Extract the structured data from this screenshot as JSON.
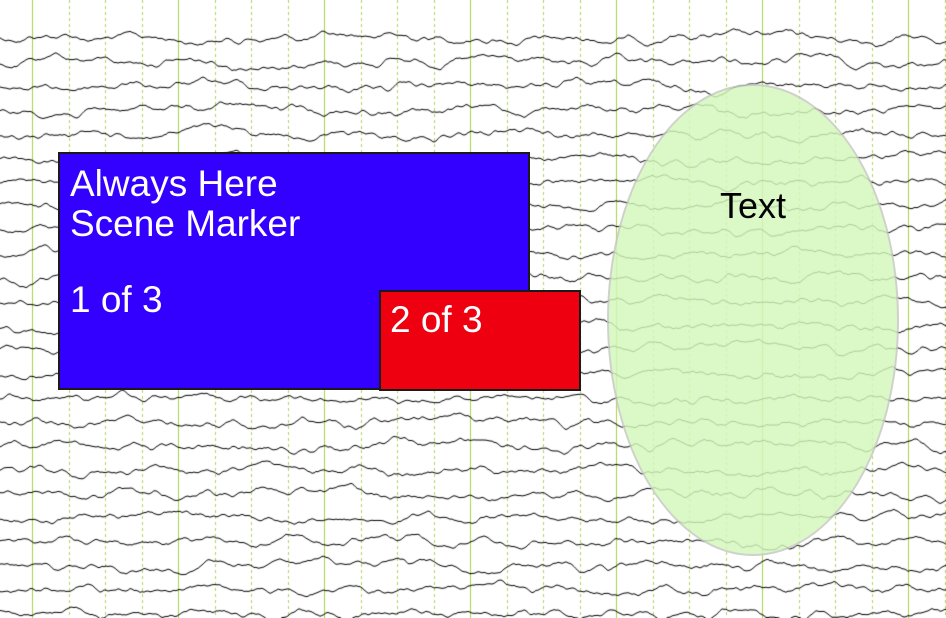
{
  "colors": {
    "background": "#ffffff",
    "trace": "#000000",
    "major_gridline": "#9acd32",
    "minor_gridline": "#9acd32",
    "marker_primary": "#3300ff",
    "marker_secondary": "#ee0011",
    "ellipse_fill": "#d4f7bb"
  },
  "eeg": {
    "channel_count": 26,
    "major_gridlines": 7,
    "minor_gridlines_per_major": 4
  },
  "scene_marker": {
    "title_line1": "Always Here",
    "title_line2": "Scene Marker",
    "counter": "1 of 3"
  },
  "second_marker": {
    "counter": "2 of 3"
  },
  "ellipse_annotation": {
    "text": "Text"
  }
}
